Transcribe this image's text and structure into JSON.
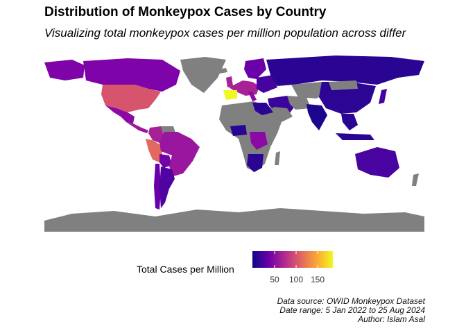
{
  "title": "Distribution of Monkeypox Cases by Country",
  "subtitle": "Visualizing total monkeypox cases per million population across differ",
  "legend": {
    "title": "Total Cases per Million",
    "ticks": [
      "50",
      "100",
      "150"
    ],
    "scale": "plasma",
    "colors": [
      "#0d0887",
      "#6a00a8",
      "#b12a90",
      "#e16462",
      "#fca636",
      "#f0f921"
    ],
    "no_data_color": "#808080"
  },
  "caption": {
    "line1": "Data source: OWID Monkeypox Dataset",
    "line2": "Date range: 5 Jan 2022 to 25 Aug 2024",
    "line3": "Author: Islam Asal"
  },
  "map_colors": {
    "usa": "#d6556d",
    "canada": "#7e03a8",
    "mexico": "#8b0aa5",
    "central_america": "#9c179e",
    "colombia": "#a62098",
    "peru": "#e3685f",
    "brazil": "#9a169f",
    "argentina": "#5002a2",
    "russia": "#2a0593",
    "china": "#2c0594",
    "spain_portugal": "#f0f921",
    "western_europe": "#a82296",
    "australia": "#4903a0",
    "africa_nodata": "#808080",
    "antarctica": "#808080"
  }
}
